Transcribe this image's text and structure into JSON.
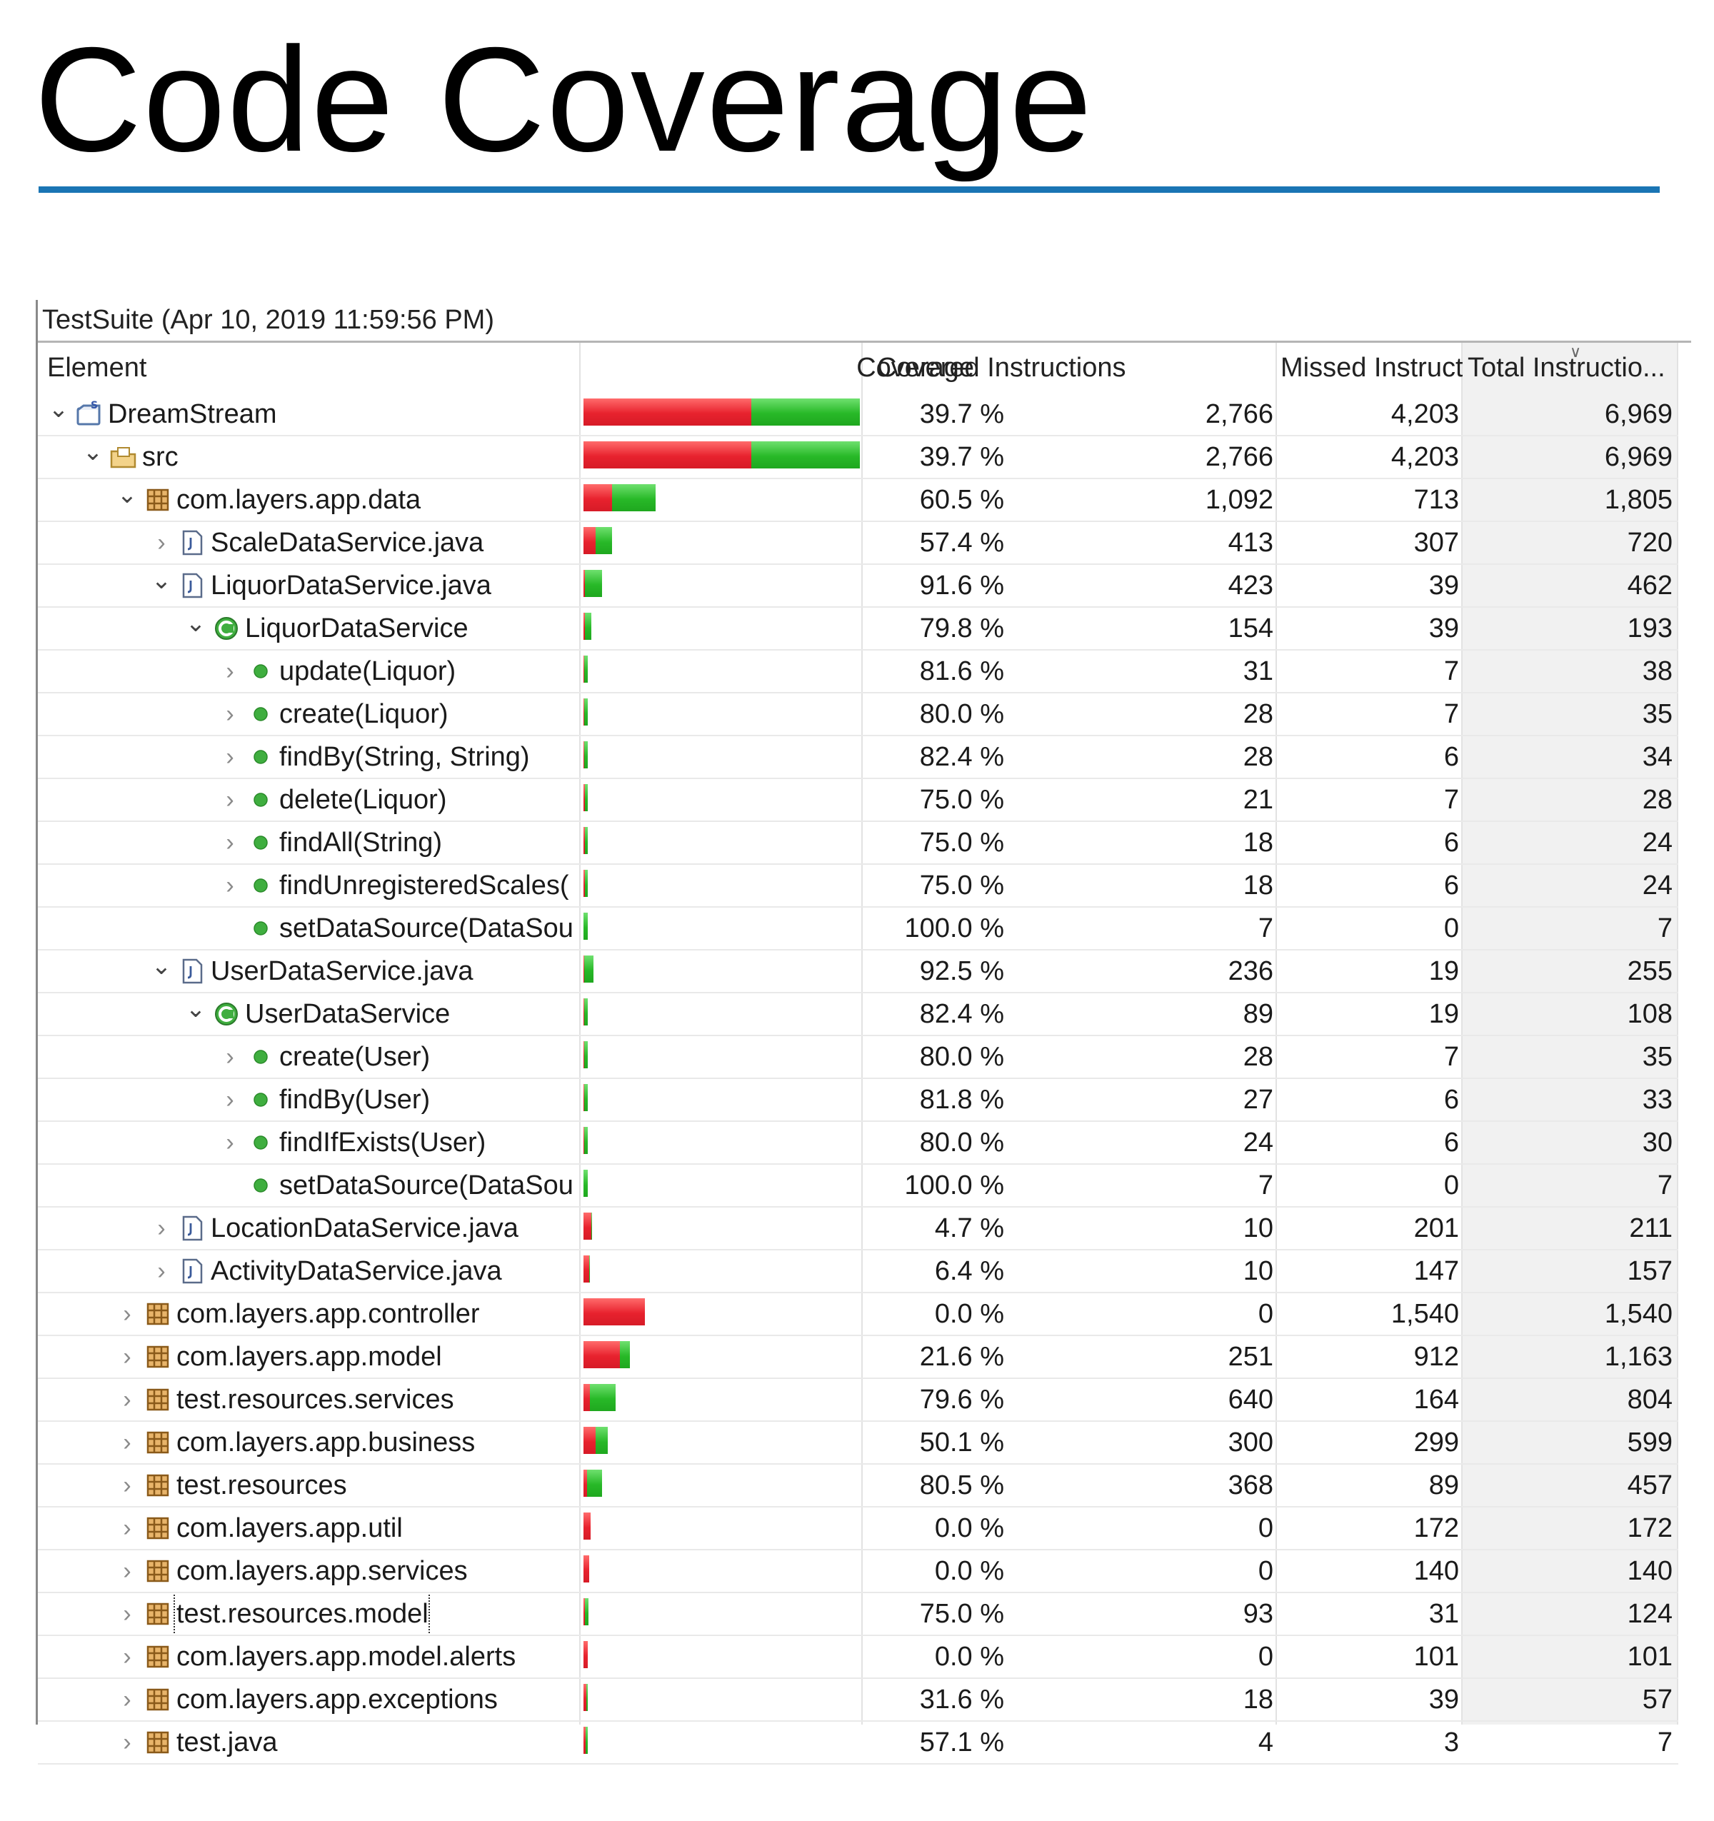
{
  "title": "Code Coverage",
  "session": "TestSuite (Apr 10, 2019 11:59:56 PM)",
  "colors": {
    "rule": "#1a75b4",
    "missed": "#e8222e",
    "covered": "#28b928"
  },
  "columns": {
    "element": "Element",
    "coverage": "Coverage",
    "covered": "Covered Instructions",
    "missed": "Missed Instruct...",
    "total": "Total Instructio..."
  },
  "rows": [
    {
      "name": "DreamStream",
      "depth": 0,
      "toggle": "expanded",
      "icon": "project-icon",
      "coverage": "39.7 %",
      "covered": "2,766",
      "missed": "4,203",
      "total": "6,969"
    },
    {
      "name": "src",
      "depth": 1,
      "toggle": "expanded",
      "icon": "source-folder-icon",
      "coverage": "39.7 %",
      "covered": "2,766",
      "missed": "4,203",
      "total": "6,969"
    },
    {
      "name": "com.layers.app.data",
      "depth": 2,
      "toggle": "expanded",
      "icon": "package-icon",
      "coverage": "60.5 %",
      "covered": "1,092",
      "missed": "713",
      "total": "1,805"
    },
    {
      "name": "ScaleDataService.java",
      "depth": 3,
      "toggle": "collapsed",
      "icon": "java-file-icon",
      "coverage": "57.4 %",
      "covered": "413",
      "missed": "307",
      "total": "720"
    },
    {
      "name": "LiquorDataService.java",
      "depth": 3,
      "toggle": "expanded",
      "icon": "java-file-icon",
      "coverage": "91.6 %",
      "covered": "423",
      "missed": "39",
      "total": "462"
    },
    {
      "name": "LiquorDataService",
      "depth": 4,
      "toggle": "expanded",
      "icon": "class-icon",
      "coverage": "79.8 %",
      "covered": "154",
      "missed": "39",
      "total": "193"
    },
    {
      "name": "update(Liquor)",
      "depth": 5,
      "toggle": "collapsed",
      "icon": "method-icon",
      "coverage": "81.6 %",
      "covered": "31",
      "missed": "7",
      "total": "38"
    },
    {
      "name": "create(Liquor)",
      "depth": 5,
      "toggle": "collapsed",
      "icon": "method-icon",
      "coverage": "80.0 %",
      "covered": "28",
      "missed": "7",
      "total": "35"
    },
    {
      "name": "findBy(String, String)",
      "depth": 5,
      "toggle": "collapsed",
      "icon": "method-icon",
      "coverage": "82.4 %",
      "covered": "28",
      "missed": "6",
      "total": "34"
    },
    {
      "name": "delete(Liquor)",
      "depth": 5,
      "toggle": "collapsed",
      "icon": "method-icon",
      "coverage": "75.0 %",
      "covered": "21",
      "missed": "7",
      "total": "28"
    },
    {
      "name": "findAll(String)",
      "depth": 5,
      "toggle": "collapsed",
      "icon": "method-icon",
      "coverage": "75.0 %",
      "covered": "18",
      "missed": "6",
      "total": "24"
    },
    {
      "name": "findUnregisteredScales(",
      "depth": 5,
      "toggle": "collapsed",
      "icon": "method-icon",
      "coverage": "75.0 %",
      "covered": "18",
      "missed": "6",
      "total": "24"
    },
    {
      "name": "setDataSource(DataSou",
      "depth": 5,
      "toggle": "none",
      "icon": "method-icon",
      "coverage": "100.0 %",
      "covered": "7",
      "missed": "0",
      "total": "7"
    },
    {
      "name": "UserDataService.java",
      "depth": 3,
      "toggle": "expanded",
      "icon": "java-file-icon",
      "coverage": "92.5 %",
      "covered": "236",
      "missed": "19",
      "total": "255"
    },
    {
      "name": "UserDataService",
      "depth": 4,
      "toggle": "expanded",
      "icon": "class-icon",
      "coverage": "82.4 %",
      "covered": "89",
      "missed": "19",
      "total": "108"
    },
    {
      "name": "create(User)",
      "depth": 5,
      "toggle": "collapsed",
      "icon": "method-icon",
      "coverage": "80.0 %",
      "covered": "28",
      "missed": "7",
      "total": "35"
    },
    {
      "name": "findBy(User)",
      "depth": 5,
      "toggle": "collapsed",
      "icon": "method-icon",
      "coverage": "81.8 %",
      "covered": "27",
      "missed": "6",
      "total": "33"
    },
    {
      "name": "findIfExists(User)",
      "depth": 5,
      "toggle": "collapsed",
      "icon": "method-icon",
      "coverage": "80.0 %",
      "covered": "24",
      "missed": "6",
      "total": "30"
    },
    {
      "name": "setDataSource(DataSou",
      "depth": 5,
      "toggle": "none",
      "icon": "method-icon",
      "coverage": "100.0 %",
      "covered": "7",
      "missed": "0",
      "total": "7"
    },
    {
      "name": "LocationDataService.java",
      "depth": 3,
      "toggle": "collapsed",
      "icon": "java-file-icon",
      "coverage": "4.7 %",
      "covered": "10",
      "missed": "201",
      "total": "211"
    },
    {
      "name": "ActivityDataService.java",
      "depth": 3,
      "toggle": "collapsed",
      "icon": "java-file-icon",
      "coverage": "6.4 %",
      "covered": "10",
      "missed": "147",
      "total": "157"
    },
    {
      "name": "com.layers.app.controller",
      "depth": 2,
      "toggle": "collapsed",
      "icon": "package-icon",
      "coverage": "0.0 %",
      "covered": "0",
      "missed": "1,540",
      "total": "1,540"
    },
    {
      "name": "com.layers.app.model",
      "depth": 2,
      "toggle": "collapsed",
      "icon": "package-icon",
      "coverage": "21.6 %",
      "covered": "251",
      "missed": "912",
      "total": "1,163"
    },
    {
      "name": "test.resources.services",
      "depth": 2,
      "toggle": "collapsed",
      "icon": "package-icon",
      "coverage": "79.6 %",
      "covered": "640",
      "missed": "164",
      "total": "804"
    },
    {
      "name": "com.layers.app.business",
      "depth": 2,
      "toggle": "collapsed",
      "icon": "package-icon",
      "coverage": "50.1 %",
      "covered": "300",
      "missed": "299",
      "total": "599"
    },
    {
      "name": "test.resources",
      "depth": 2,
      "toggle": "collapsed",
      "icon": "package-icon",
      "coverage": "80.5 %",
      "covered": "368",
      "missed": "89",
      "total": "457"
    },
    {
      "name": "com.layers.app.util",
      "depth": 2,
      "toggle": "collapsed",
      "icon": "package-icon",
      "coverage": "0.0 %",
      "covered": "0",
      "missed": "172",
      "total": "172"
    },
    {
      "name": "com.layers.app.services",
      "depth": 2,
      "toggle": "collapsed",
      "icon": "package-icon",
      "coverage": "0.0 %",
      "covered": "0",
      "missed": "140",
      "total": "140"
    },
    {
      "name": "test.resources.model",
      "depth": 2,
      "toggle": "collapsed",
      "icon": "package-icon",
      "coverage": "75.0 %",
      "covered": "93",
      "missed": "31",
      "total": "124",
      "focused": true
    },
    {
      "name": "com.layers.app.model.alerts",
      "depth": 2,
      "toggle": "collapsed",
      "icon": "package-icon",
      "coverage": "0.0 %",
      "covered": "0",
      "missed": "101",
      "total": "101"
    },
    {
      "name": "com.layers.app.exceptions",
      "depth": 2,
      "toggle": "collapsed",
      "icon": "package-icon",
      "coverage": "31.6 %",
      "covered": "18",
      "missed": "39",
      "total": "57"
    },
    {
      "name": "test.java",
      "depth": 2,
      "toggle": "collapsed",
      "icon": "package-icon",
      "coverage": "57.1 %",
      "covered": "4",
      "missed": "3",
      "total": "7"
    }
  ]
}
